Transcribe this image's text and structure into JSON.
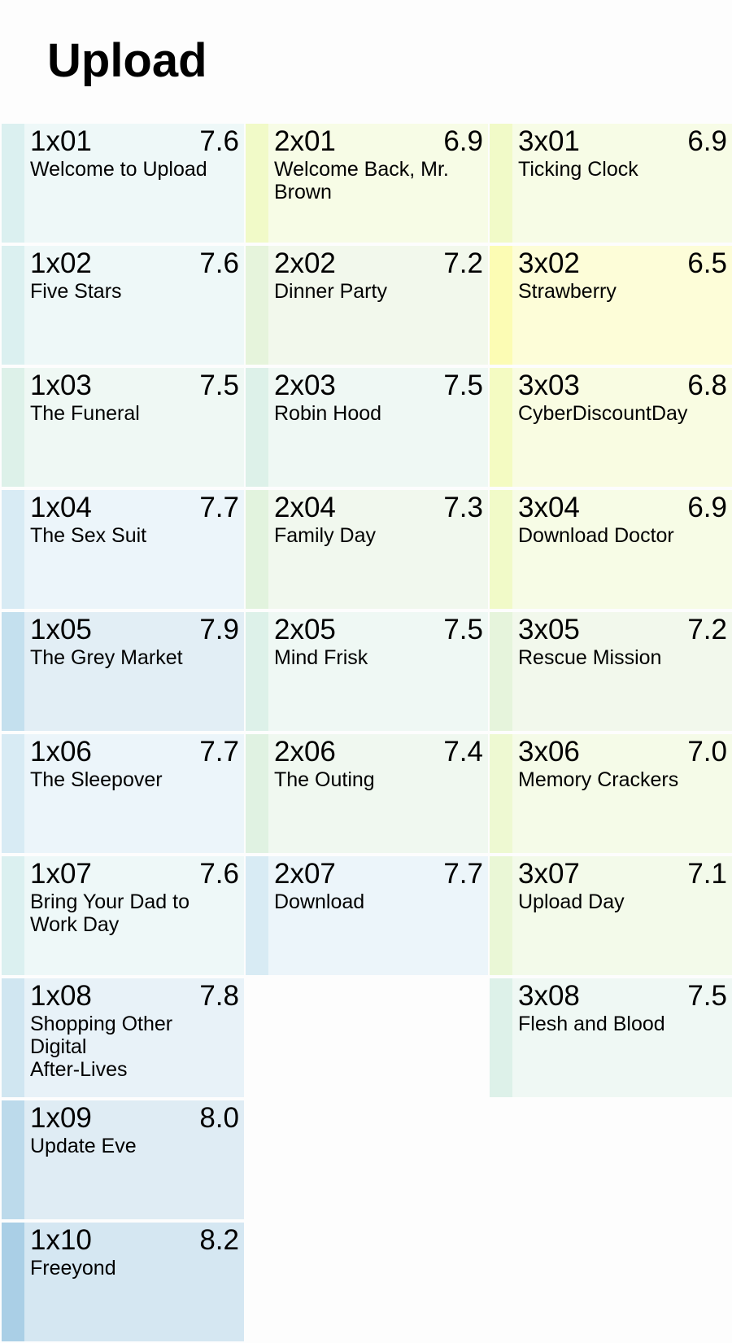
{
  "title": "Upload",
  "seasons": [
    {
      "episodes": [
        {
          "code": "1x01",
          "rating": "7.6",
          "title": "Welcome to Upload",
          "bg": "#eef8f8",
          "stripe": "#dbf0f0"
        },
        {
          "code": "1x02",
          "rating": "7.6",
          "title": "Five Stars",
          "bg": "#eef8f8",
          "stripe": "#dbf0f0"
        },
        {
          "code": "1x03",
          "rating": "7.5",
          "title": "The Funeral",
          "bg": "#eff8f4",
          "stripe": "#ddf1e9"
        },
        {
          "code": "1x04",
          "rating": "7.7",
          "title": "The Sex Suit",
          "bg": "#ecf5fa",
          "stripe": "#d8ebf4"
        },
        {
          "code": "1x05",
          "rating": "7.9",
          "title": "The Grey Market",
          "bg": "#e2eef5",
          "stripe": "#c4e0ee"
        },
        {
          "code": "1x06",
          "rating": "7.7",
          "title": "The Sleepover",
          "bg": "#ecf5fa",
          "stripe": "#d8ebf4"
        },
        {
          "code": "1x07",
          "rating": "7.6",
          "title": "Bring Your Dad to\n  Work Day",
          "bg": "#eef8f8",
          "stripe": "#dbf0f0"
        },
        {
          "code": "1x08",
          "rating": "7.8",
          "title": "Shopping Other\n  Digital\n  After-Lives",
          "bg": "#e8f2f8",
          "stripe": "#d0e6f1"
        },
        {
          "code": "1x09",
          "rating": "8.0",
          "title": "Update Eve",
          "bg": "#dfecf4",
          "stripe": "#bcdaeb"
        },
        {
          "code": "1x10",
          "rating": "8.2",
          "title": "Freeyond",
          "bg": "#d5e7f2",
          "stripe": "#aacfe6"
        }
      ]
    },
    {
      "episodes": [
        {
          "code": "2x01",
          "rating": "6.9",
          "title": "Welcome Back, Mr.\n  Brown",
          "bg": "#f7fce6",
          "stripe": "#f1fac8"
        },
        {
          "code": "2x02",
          "rating": "7.2",
          "title": "Dinner Party",
          "bg": "#f2f8ec",
          "stripe": "#e6f4dc"
        },
        {
          "code": "2x03",
          "rating": "7.5",
          "title": "Robin Hood",
          "bg": "#eff8f4",
          "stripe": "#ddf1e9"
        },
        {
          "code": "2x04",
          "rating": "7.3",
          "title": "Family Day",
          "bg": "#f1f8ee",
          "stripe": "#e2f3de"
        },
        {
          "code": "2x05",
          "rating": "7.5",
          "title": "Mind Frisk",
          "bg": "#eff8f4",
          "stripe": "#ddf1e9"
        },
        {
          "code": "2x06",
          "rating": "7.4",
          "title": "The Outing",
          "bg": "#f0f8f0",
          "stripe": "#e0f2e2"
        },
        {
          "code": "2x07",
          "rating": "7.7",
          "title": "Download",
          "bg": "#ecf5fa",
          "stripe": "#d8ebf4"
        }
      ]
    },
    {
      "episodes": [
        {
          "code": "3x01",
          "rating": "6.9",
          "title": "Ticking Clock",
          "bg": "#f7fce6",
          "stripe": "#f1fac8"
        },
        {
          "code": "3x02",
          "rating": "6.5",
          "title": "Strawberry",
          "bg": "#fdfdd8",
          "stripe": "#fcfcb4"
        },
        {
          "code": "3x03",
          "rating": "6.8",
          "title": "CyberDiscountDay",
          "bg": "#f9fce2",
          "stripe": "#f4fbc2"
        },
        {
          "code": "3x04",
          "rating": "6.9",
          "title": "Download Doctor",
          "bg": "#f7fce6",
          "stripe": "#f1fac8"
        },
        {
          "code": "3x05",
          "rating": "7.2",
          "title": "Rescue Mission",
          "bg": "#f2f8ec",
          "stripe": "#e6f4dc"
        },
        {
          "code": "3x06",
          "rating": "7.0",
          "title": "Memory Crackers",
          "bg": "#f5fbe8",
          "stripe": "#eef9d2"
        },
        {
          "code": "3x07",
          "rating": "7.1",
          "title": "Upload Day",
          "bg": "#f3faea",
          "stripe": "#eaf7d6"
        },
        {
          "code": "3x08",
          "rating": "7.5",
          "title": "Flesh and Blood",
          "bg": "#eff8f4",
          "stripe": "#ddf1e9"
        }
      ]
    }
  ]
}
